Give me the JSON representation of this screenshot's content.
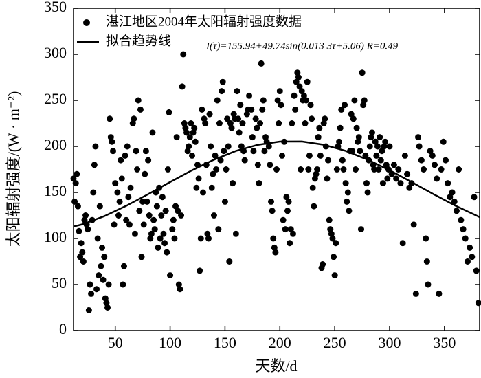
{
  "chart_data": {
    "type": "scatter",
    "xlabel": "天数/d",
    "ylabel": "太阳辐射强度/(W · m⁻²)",
    "annotation": "I(τ)=155.94+49.74sin(0.013 3τ+5.06) R=0.49",
    "xlim": [
      12,
      382
    ],
    "ylim": [
      0,
      350
    ],
    "xticks": [
      50,
      100,
      150,
      200,
      250,
      300,
      350
    ],
    "yticks": [
      0,
      50,
      100,
      150,
      200,
      250,
      300,
      350
    ],
    "legend": "upper left",
    "series": [
      {
        "name": "湛江地区2004年太阳辐射强度数据",
        "type": "scatter",
        "color": "#000000",
        "x": [
          12,
          13,
          14,
          15,
          16,
          17,
          18,
          19,
          20,
          21,
          22,
          23,
          24,
          25,
          26,
          27,
          28,
          29,
          30,
          31,
          32,
          33,
          34,
          35,
          36,
          37,
          38,
          39,
          40,
          41,
          42,
          43,
          44,
          45,
          46,
          47,
          48,
          49,
          50,
          52,
          53,
          54,
          55,
          56,
          57,
          58,
          59,
          60,
          61,
          62,
          63,
          64,
          66,
          67,
          68,
          69,
          70,
          71,
          72,
          73,
          74,
          75,
          76,
          77,
          78,
          79,
          80,
          81,
          82,
          83,
          84,
          85,
          86,
          87,
          88,
          89,
          90,
          91,
          92,
          93,
          94,
          95,
          96,
          97,
          98,
          99,
          100,
          102,
          103,
          104,
          105,
          106,
          107,
          108,
          109,
          110,
          111,
          112,
          113,
          114,
          115,
          116,
          117,
          118,
          119,
          120,
          121,
          122,
          123,
          124,
          125,
          126,
          127,
          128,
          129,
          130,
          131,
          132,
          133,
          134,
          135,
          136,
          137,
          138,
          139,
          140,
          141,
          142,
          143,
          144,
          145,
          146,
          147,
          148,
          149,
          150,
          151,
          152,
          153,
          154,
          155,
          156,
          157,
          158,
          159,
          160,
          161,
          162,
          163,
          164,
          165,
          166,
          167,
          168,
          170,
          171,
          172,
          174,
          175,
          176,
          178,
          179,
          180,
          181,
          182,
          183,
          184,
          185,
          186,
          187,
          188,
          190,
          191,
          192,
          193,
          194,
          195,
          196,
          197,
          198,
          199,
          200,
          201,
          202,
          203,
          204,
          205,
          206,
          207,
          208,
          209,
          210,
          211,
          212,
          213,
          214,
          215,
          216,
          217,
          218,
          219,
          220,
          221,
          222,
          223,
          224,
          225,
          226,
          227,
          228,
          229,
          230,
          231,
          232,
          233,
          234,
          235,
          236,
          237,
          238,
          239,
          240,
          241,
          242,
          243,
          244,
          245,
          246,
          247,
          248,
          249,
          250,
          251,
          252,
          253,
          254,
          255,
          256,
          257,
          258,
          259,
          260,
          261,
          262,
          263,
          264,
          265,
          266,
          267,
          268,
          269,
          270,
          271,
          272,
          273,
          274,
          275,
          276,
          277,
          278,
          279,
          280,
          281,
          282,
          283,
          284,
          285,
          286,
          287,
          288,
          289,
          290,
          291,
          292,
          293,
          294,
          295,
          296,
          297,
          298,
          299,
          300,
          302,
          304,
          306,
          308,
          310,
          312,
          314,
          316,
          318,
          320,
          322,
          324,
          326,
          327,
          329,
          331,
          333,
          334,
          335,
          337,
          339,
          341,
          343,
          345,
          347,
          349,
          351,
          353,
          355,
          357,
          359,
          361,
          363,
          365,
          367,
          369,
          371,
          373,
          375,
          377,
          379,
          381
        ],
        "values": [
          165,
          140,
          160,
          170,
          135,
          108,
          80,
          95,
          85,
          75,
          120,
          125,
          115,
          110,
          22,
          50,
          40,
          120,
          150,
          180,
          200,
          45,
          100,
          60,
          135,
          70,
          90,
          55,
          80,
          35,
          30,
          25,
          50,
          230,
          210,
          205,
          195,
          115,
          160,
          150,
          125,
          140,
          185,
          165,
          50,
          70,
          190,
          120,
          200,
          145,
          115,
          155,
          225,
          230,
          105,
          195,
          175,
          250,
          130,
          240,
          80,
          140,
          115,
          170,
          195,
          140,
          185,
          125,
          100,
          105,
          215,
          120,
          110,
          150,
          135,
          90,
          155,
          100,
          125,
          145,
          105,
          95,
          130,
          85,
          175,
          237,
          60,
          110,
          120,
          100,
          135,
          210,
          130,
          50,
          45,
          125,
          265,
          300,
          225,
          220,
          215,
          195,
          200,
          210,
          225,
          190,
          215,
          220,
          205,
          155,
          180,
          165,
          65,
          100,
          240,
          150,
          230,
          225,
          180,
          105,
          100,
          235,
          200,
          155,
          170,
          125,
          190,
          175,
          250,
          110,
          225,
          185,
          260,
          270,
          195,
          140,
          175,
          230,
          200,
          75,
          225,
          220,
          160,
          235,
          230,
          105,
          260,
          230,
          215,
          245,
          200,
          225,
          195,
          185,
          235,
          240,
          255,
          240,
          210,
          195,
          230,
          220,
          180,
          160,
          225,
          290,
          240,
          250,
          195,
          210,
          205,
          200,
          180,
          140,
          130,
          100,
          90,
          85,
          175,
          250,
          225,
          260,
          245,
          190,
          120,
          205,
          110,
          145,
          130,
          140,
          95,
          110,
          225,
          105,
          255,
          240,
          270,
          280,
          275,
          265,
          175,
          260,
          250,
          255,
          225,
          250,
          270,
          175,
          190,
          245,
          230,
          155,
          135,
          165,
          170,
          175,
          210,
          220,
          190,
          68,
          72,
          225,
          230,
          200,
          165,
          185,
          120,
          110,
          105,
          100,
          80,
          60,
          95,
          175,
          200,
          205,
          220,
          240,
          185,
          175,
          245,
          160,
          140,
          150,
          130,
          195,
          235,
          195,
          230,
          250,
          175,
          220,
          205,
          210,
          195,
          110,
          280,
          245,
          250,
          190,
          160,
          150,
          185,
          200,
          210,
          215,
          180,
          175,
          205,
          190,
          200,
          175,
          210,
          185,
          195,
          160,
          200,
          205,
          180,
          165,
          175,
          200,
          170,
          180,
          165,
          175,
          160,
          95,
          190,
          170,
          155,
          160,
          115,
          40,
          210,
          200,
          185,
          175,
          100,
          75,
          50,
          195,
          190,
          180,
          165,
          40,
          175,
          205,
          185,
          160,
          145,
          150,
          140,
          130,
          175,
          120,
          110,
          100,
          75,
          90,
          80,
          145,
          65,
          30
        ]
      },
      {
        "name": "拟合趋势线",
        "type": "line",
        "color": "#000000",
        "x": [
          12,
          20,
          40,
          60,
          80,
          100,
          120,
          140,
          160,
          180,
          200,
          220,
          240,
          260,
          280,
          300,
          320,
          340,
          360,
          382
        ],
        "values": [
          112.9,
          115.3,
          124.2,
          135.4,
          148.1,
          161.3,
          174.1,
          185.6,
          195.1,
          201.7,
          205.2,
          205.3,
          201.8,
          195.1,
          185.6,
          174.1,
          161.3,
          148.1,
          135.5,
          123.2
        ]
      }
    ]
  }
}
